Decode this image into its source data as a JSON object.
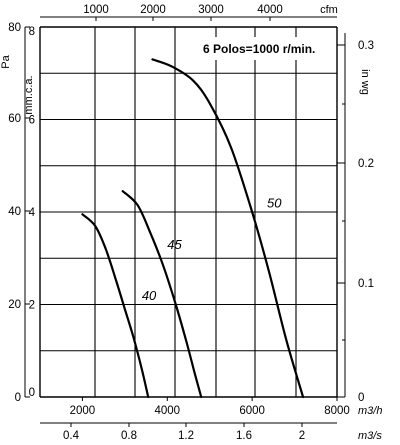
{
  "chart_data": {
    "type": "line",
    "title": "6 Polos=1000 r/min.",
    "x_unit": "m3/h",
    "xlim": [
      1000,
      8000
    ],
    "x_ticks": [
      2000,
      4000,
      6000,
      8000
    ],
    "x_secondary_unit": "m3/s",
    "x_secondary_ticks": [
      "0.4",
      "0.8",
      "1.2",
      "1.6",
      "2"
    ],
    "x_top_unit": "cfm",
    "x_top_ticks": [
      "1000",
      "2000",
      "3000",
      "4000"
    ],
    "y_left_unit": "Pa",
    "y_left_ticks": [
      "0",
      "20",
      "40",
      "60",
      "80"
    ],
    "y_unit": "mm.c.a.",
    "ylim": [
      0,
      8
    ],
    "y_ticks": [
      "0",
      "2",
      "4",
      "6",
      "8"
    ],
    "y_right_unit": "in wg",
    "y_right_ticks": [
      "0",
      "0.1",
      "0.2",
      "0.3"
    ],
    "series": [
      {
        "name": "40",
        "x": [
          2000,
          2300,
          2550,
          2800,
          3000,
          3200,
          3400,
          3550
        ],
        "y": [
          3.95,
          3.7,
          3.2,
          2.5,
          1.9,
          1.3,
          0.6,
          0.0
        ]
      },
      {
        "name": "45",
        "x": [
          2950,
          3300,
          3600,
          3900,
          4200,
          4450,
          4650,
          4800
        ],
        "y": [
          4.45,
          4.15,
          3.55,
          2.85,
          2.0,
          1.2,
          0.5,
          0.0
        ]
      },
      {
        "name": "50",
        "x": [
          3650,
          4100,
          4600,
          5000,
          5500,
          6000,
          6400,
          6800,
          7200
        ],
        "y": [
          7.3,
          7.15,
          6.85,
          6.35,
          5.4,
          4.0,
          2.7,
          1.25,
          0.0
        ]
      }
    ]
  }
}
